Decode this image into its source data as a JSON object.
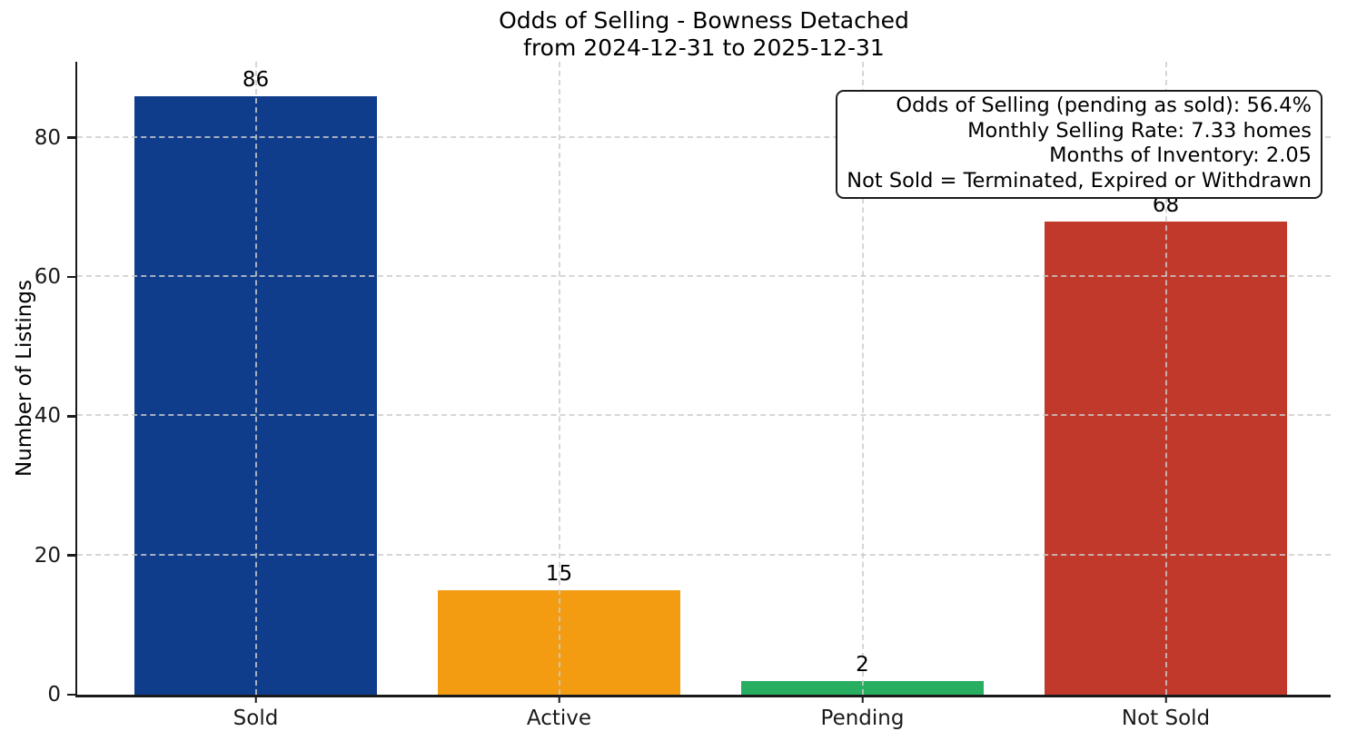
{
  "chart_data": {
    "type": "bar",
    "title": "Odds of Selling - Bowness Detached\nfrom 2024-12-31 to 2025-12-31",
    "title_line1": "Odds of Selling - Bowness Detached",
    "title_line2": "from 2024-12-31 to 2025-12-31",
    "categories": [
      "Sold",
      "Active",
      "Pending",
      "Not Sold"
    ],
    "values": [
      86,
      15,
      2,
      68
    ],
    "value_labels": [
      "86",
      "15",
      "2",
      "68"
    ],
    "bar_colors": [
      "#0f3d8c",
      "#f39c12",
      "#27ae60",
      "#c0392b"
    ],
    "xlabel": "",
    "ylabel": "Number of Listings",
    "ylim": [
      0,
      90.9
    ],
    "yticks": [
      0,
      20,
      40,
      60,
      80
    ],
    "grid": "dashed light-gray gridlines on both axes, drawn above bars",
    "legend": "none",
    "annotation_box": {
      "position": "top-right",
      "text_align": "right",
      "lines": [
        "Odds of Selling (pending as sold): 56.4%",
        "Monthly Selling Rate: 7.33 homes",
        "Months of Inventory: 2.05",
        "Not Sold = Terminated, Expired or Withdrawn"
      ]
    }
  },
  "colors": {
    "background": "#ffffff",
    "text": "#000000",
    "axis": "#1a1a1a",
    "grid": "#cccccc"
  }
}
